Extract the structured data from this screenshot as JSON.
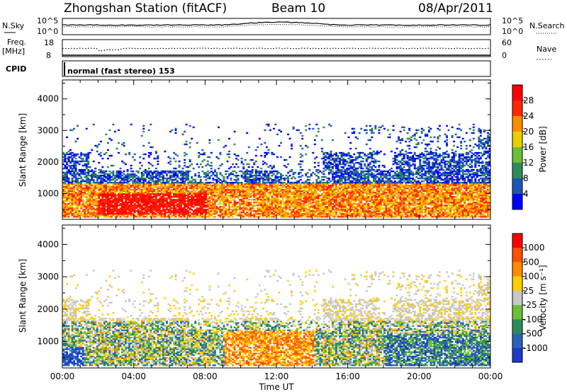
{
  "header": {
    "station": "Zhongshan Station (fitACF)",
    "beam": "Beam 10",
    "date": "08/Apr/2011"
  },
  "strips": {
    "nsky_label": "N.Sky",
    "nsky_ticks": [
      "10^5",
      "10^0"
    ],
    "nsearch_label": "N.Search",
    "nsearch_ticks": [
      "10^5",
      "10^0"
    ],
    "freq_label": "Freq.",
    "freq_unit": "[MHz]",
    "freq_ticks": [
      "18",
      "8"
    ],
    "nave_label": "Nave",
    "nave_ticks": [
      "60",
      "0"
    ],
    "cpid_label": "CPID",
    "cpid_text": "normal (fast stereo) 153"
  },
  "chart_data": [
    {
      "type": "heatmap",
      "name": "power",
      "ylabel": "Slant Range [km]",
      "yticks": [
        "4000",
        "3000",
        "2000",
        "1000"
      ],
      "ylim": [
        180,
        4600
      ],
      "xlim_hours": [
        0,
        24
      ],
      "colorbar_label": "Power [dB]",
      "colorbar_ticks": [
        "28",
        "24",
        "20",
        "16",
        "12",
        "8",
        "4"
      ],
      "colorbar_colors": [
        "#0000ff",
        "#1c56b4",
        "#2e8b57",
        "#6cbf38",
        "#e8d000",
        "#ff8c00",
        "#ff2800",
        "#ff0000"
      ]
    },
    {
      "type": "heatmap",
      "name": "velocity",
      "ylabel": "Slant Range [km]",
      "yticks": [
        "4000",
        "3000",
        "2000",
        "1000"
      ],
      "ylim": [
        180,
        4600
      ],
      "xlim_hours": [
        0,
        24
      ],
      "colorbar_label": "Velocity [m s⁻¹]",
      "colorbar_ticks": [
        "1000",
        "500",
        "100",
        "25",
        "-25",
        "-100",
        "-500",
        "-1000"
      ],
      "colorbar_colors": [
        "#1c3cc8",
        "#2a63b8",
        "#2e8b57",
        "#6cbf38",
        "#c8c8c8",
        "#ffd000",
        "#ff8c00",
        "#ff5000",
        "#ff0000"
      ]
    }
  ],
  "xaxis": {
    "ticks": [
      "00:00",
      "04:00",
      "08:00",
      "12:00",
      "16:00",
      "20:00",
      "00:00"
    ],
    "label": "Time UT"
  }
}
